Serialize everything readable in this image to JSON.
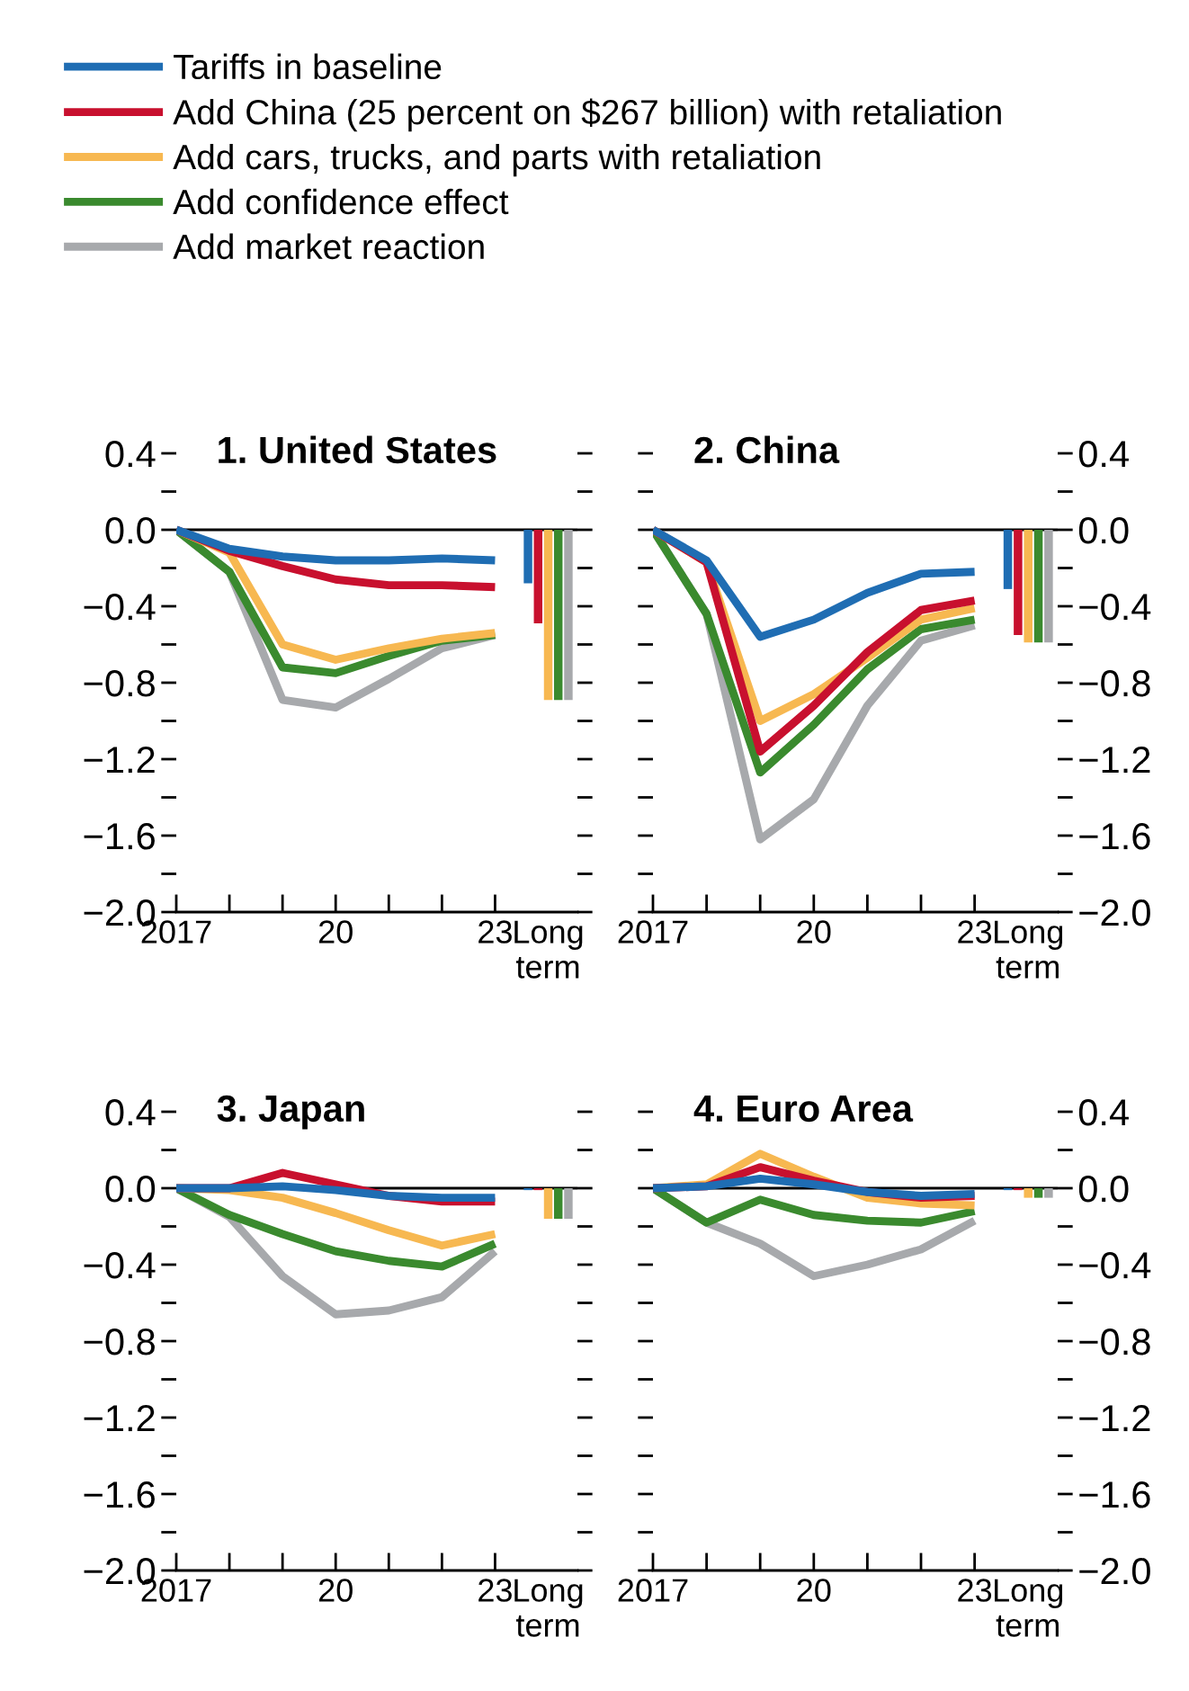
{
  "chart_data": [
    {
      "type": "line",
      "title": "1. United States",
      "legend": "top",
      "categories": [
        "2017",
        null,
        null,
        "20",
        null,
        null,
        "23",
        "Long term"
      ],
      "ylim": [
        -2.0,
        0.4
      ],
      "yticks": [
        {
          "value": 0.4,
          "label": "0.4"
        },
        {
          "value": 0.2,
          "label": null
        },
        {
          "value": 0.0,
          "label": "0.0"
        },
        {
          "value": -0.2,
          "label": null
        },
        {
          "value": -0.4,
          "label": "−0.4"
        },
        {
          "value": -0.6,
          "label": null
        },
        {
          "value": -0.8,
          "label": "−0.8"
        },
        {
          "value": -1.0,
          "label": null
        },
        {
          "value": -1.2,
          "label": "−1.2"
        },
        {
          "value": -1.4,
          "label": null
        },
        {
          "value": -1.6,
          "label": "−1.6"
        },
        {
          "value": -1.8,
          "label": null
        },
        {
          "value": -2.0,
          "label": "−2.0"
        }
      ],
      "ref_lines": [
        {
          "axis": "y",
          "value": 0,
          "color": "#000000"
        }
      ],
      "series": [
        {
          "name": "Tariffs in baseline",
          "color": "#1f6db3",
          "values": [
            0,
            -0.1,
            -0.14,
            -0.16,
            -0.16,
            -0.15,
            -0.16,
            null
          ]
        },
        {
          "name": "Add China (25 percent on $267 billion) with retaliation",
          "color": "#c8102e",
          "values": [
            0,
            -0.11,
            -0.19,
            -0.26,
            -0.29,
            -0.29,
            -0.3,
            null
          ]
        },
        {
          "name": "Add cars, trucks, and parts with retaliation",
          "color": "#f7b851",
          "values": [
            0,
            -0.12,
            -0.6,
            -0.68,
            -0.62,
            -0.57,
            -0.54,
            null
          ]
        },
        {
          "name": "Add confidence effect",
          "color": "#3a8a2e",
          "values": [
            0,
            -0.22,
            -0.72,
            -0.75,
            -0.66,
            -0.58,
            -0.55,
            null
          ]
        },
        {
          "name": "Add market reaction",
          "color": "#a7a9ac",
          "values": [
            0,
            -0.22,
            -0.89,
            -0.93,
            -0.78,
            -0.62,
            -0.55,
            null
          ]
        },
        {
          "type": "bar",
          "color": "#1f6db3",
          "values": [
            null,
            null,
            null,
            null,
            null,
            null,
            null,
            -0.28
          ]
        },
        {
          "type": "bar",
          "color": "#c8102e",
          "values": [
            null,
            null,
            null,
            null,
            null,
            null,
            null,
            -0.49
          ]
        },
        {
          "type": "bar",
          "color": "#f7b851",
          "values": [
            null,
            null,
            null,
            null,
            null,
            null,
            null,
            -0.89
          ]
        },
        {
          "type": "bar",
          "color": "#3a8a2e",
          "values": [
            null,
            null,
            null,
            null,
            null,
            null,
            null,
            -0.89
          ]
        },
        {
          "type": "bar",
          "color": "#a7a9ac",
          "values": [
            null,
            null,
            null,
            null,
            null,
            null,
            null,
            -0.89
          ]
        }
      ]
    },
    {
      "type": "line",
      "title": "2. China",
      "categories": [
        "2017",
        null,
        null,
        "20",
        null,
        null,
        "23",
        "Long term"
      ],
      "y2lim": [
        -2.0,
        0.4
      ],
      "y2ticks": [
        {
          "value": 0.4,
          "label": "0.4"
        },
        {
          "value": 0.2,
          "label": null
        },
        {
          "value": 0.0,
          "label": "0.0"
        },
        {
          "value": -0.2,
          "label": null
        },
        {
          "value": -0.4,
          "label": "−0.4"
        },
        {
          "value": -0.6,
          "label": null
        },
        {
          "value": -0.8,
          "label": "−0.8"
        },
        {
          "value": -1.0,
          "label": null
        },
        {
          "value": -1.2,
          "label": "−1.2"
        },
        {
          "value": -1.4,
          "label": null
        },
        {
          "value": -1.6,
          "label": "−1.6"
        },
        {
          "value": -1.8,
          "label": null
        },
        {
          "value": -2.0,
          "label": "−2.0"
        }
      ],
      "ref_lines": [
        {
          "axis": "y2",
          "value": 0,
          "color": "#000000"
        }
      ],
      "series": [
        {
          "axis": "y2",
          "color": "#1f6db3",
          "values": [
            0,
            -0.16,
            -0.56,
            -0.47,
            -0.33,
            -0.23,
            -0.22,
            null
          ]
        },
        {
          "axis": "y2",
          "color": "#c8102e",
          "values": [
            0,
            -0.17,
            -1.16,
            -0.92,
            -0.64,
            -0.42,
            -0.37,
            null
          ]
        },
        {
          "axis": "y2",
          "color": "#f7b851",
          "values": [
            0,
            -0.17,
            -1.0,
            -0.86,
            -0.67,
            -0.47,
            -0.41,
            null
          ]
        },
        {
          "axis": "y2",
          "color": "#3a8a2e",
          "values": [
            0,
            -0.44,
            -1.27,
            -1.02,
            -0.73,
            -0.52,
            -0.47,
            null
          ]
        },
        {
          "axis": "y2",
          "color": "#a7a9ac",
          "values": [
            0,
            -0.44,
            -1.62,
            -1.41,
            -0.92,
            -0.58,
            -0.5,
            null
          ]
        },
        {
          "axis": "y2",
          "type": "bar",
          "color": "#1f6db3",
          "values": [
            null,
            null,
            null,
            null,
            null,
            null,
            null,
            -0.31
          ]
        },
        {
          "axis": "y2",
          "type": "bar",
          "color": "#c8102e",
          "values": [
            null,
            null,
            null,
            null,
            null,
            null,
            null,
            -0.55
          ]
        },
        {
          "axis": "y2",
          "type": "bar",
          "color": "#f7b851",
          "values": [
            null,
            null,
            null,
            null,
            null,
            null,
            null,
            -0.59
          ]
        },
        {
          "axis": "y2",
          "type": "bar",
          "color": "#3a8a2e",
          "values": [
            null,
            null,
            null,
            null,
            null,
            null,
            null,
            -0.59
          ]
        },
        {
          "axis": "y2",
          "type": "bar",
          "color": "#a7a9ac",
          "values": [
            null,
            null,
            null,
            null,
            null,
            null,
            null,
            -0.59
          ]
        }
      ]
    },
    {
      "type": "line",
      "title": "3. Japan",
      "categories": [
        "2017",
        null,
        null,
        "20",
        null,
        null,
        "23",
        "Long term"
      ],
      "ylim": [
        -2.0,
        0.4
      ],
      "yticks": [
        {
          "value": 0.4,
          "label": "0.4"
        },
        {
          "value": 0.2,
          "label": null
        },
        {
          "value": 0.0,
          "label": "0.0"
        },
        {
          "value": -0.2,
          "label": null
        },
        {
          "value": -0.4,
          "label": "−0.4"
        },
        {
          "value": -0.6,
          "label": null
        },
        {
          "value": -0.8,
          "label": "−0.8"
        },
        {
          "value": -1.0,
          "label": null
        },
        {
          "value": -1.2,
          "label": "−1.2"
        },
        {
          "value": -1.4,
          "label": null
        },
        {
          "value": -1.6,
          "label": "−1.6"
        },
        {
          "value": -1.8,
          "label": null
        },
        {
          "value": -2.0,
          "label": "−2.0"
        }
      ],
      "ref_lines": [
        {
          "axis": "y",
          "value": 0,
          "color": "#000000"
        }
      ],
      "series": [
        {
          "color": "#1f6db3",
          "values": [
            0,
            0.0,
            0.01,
            -0.01,
            -0.04,
            -0.05,
            -0.05,
            null
          ]
        },
        {
          "color": "#c8102e",
          "values": [
            0,
            0.0,
            0.08,
            0.02,
            -0.04,
            -0.07,
            -0.07,
            null
          ]
        },
        {
          "color": "#f7b851",
          "values": [
            0,
            -0.01,
            -0.05,
            -0.13,
            -0.22,
            -0.3,
            -0.24,
            null
          ]
        },
        {
          "color": "#3a8a2e",
          "values": [
            0,
            -0.14,
            -0.24,
            -0.33,
            -0.38,
            -0.41,
            -0.29,
            null
          ]
        },
        {
          "color": "#a7a9ac",
          "values": [
            0,
            -0.15,
            -0.46,
            -0.66,
            -0.64,
            -0.57,
            -0.33,
            null
          ]
        },
        {
          "type": "bar",
          "color": "#1f6db3",
          "values": [
            null,
            null,
            null,
            null,
            null,
            null,
            null,
            -0.01
          ]
        },
        {
          "type": "bar",
          "color": "#c8102e",
          "values": [
            null,
            null,
            null,
            null,
            null,
            null,
            null,
            -0.01
          ]
        },
        {
          "type": "bar",
          "color": "#f7b851",
          "values": [
            null,
            null,
            null,
            null,
            null,
            null,
            null,
            -0.16
          ]
        },
        {
          "type": "bar",
          "color": "#3a8a2e",
          "values": [
            null,
            null,
            null,
            null,
            null,
            null,
            null,
            -0.16
          ]
        },
        {
          "type": "bar",
          "color": "#a7a9ac",
          "values": [
            null,
            null,
            null,
            null,
            null,
            null,
            null,
            -0.16
          ]
        }
      ]
    },
    {
      "type": "line",
      "title": "4. Euro Area",
      "categories": [
        "2017",
        null,
        null,
        "20",
        null,
        null,
        "23",
        "Long term"
      ],
      "y2lim": [
        -2.0,
        0.4
      ],
      "y2ticks": [
        {
          "value": 0.4,
          "label": "0.4"
        },
        {
          "value": 0.2,
          "label": null
        },
        {
          "value": 0.0,
          "label": "0.0"
        },
        {
          "value": -0.2,
          "label": null
        },
        {
          "value": -0.4,
          "label": "−0.4"
        },
        {
          "value": -0.6,
          "label": null
        },
        {
          "value": -0.8,
          "label": "−0.8"
        },
        {
          "value": -1.0,
          "label": null
        },
        {
          "value": -1.2,
          "label": "−1.2"
        },
        {
          "value": -1.4,
          "label": null
        },
        {
          "value": -1.6,
          "label": "−1.6"
        },
        {
          "value": -1.8,
          "label": null
        },
        {
          "value": -2.0,
          "label": "−2.0"
        }
      ],
      "ref_lines": [
        {
          "axis": "y2",
          "value": 0,
          "color": "#000000"
        }
      ],
      "series": [
        {
          "axis": "y2",
          "color": "#1f6db3",
          "values": [
            0,
            0.01,
            0.05,
            0.02,
            -0.02,
            -0.04,
            -0.03,
            null
          ]
        },
        {
          "axis": "y2",
          "color": "#c8102e",
          "values": [
            0,
            0.01,
            0.11,
            0.04,
            -0.02,
            -0.05,
            -0.04,
            null
          ]
        },
        {
          "axis": "y2",
          "color": "#f7b851",
          "values": [
            0,
            0.02,
            0.18,
            0.06,
            -0.05,
            -0.08,
            -0.09,
            null
          ]
        },
        {
          "axis": "y2",
          "color": "#3a8a2e",
          "values": [
            0,
            -0.18,
            -0.06,
            -0.14,
            -0.17,
            -0.18,
            -0.12,
            null
          ]
        },
        {
          "axis": "y2",
          "color": "#a7a9ac",
          "values": [
            0,
            -0.18,
            -0.29,
            -0.46,
            -0.4,
            -0.32,
            -0.17,
            null
          ]
        },
        {
          "axis": "y2",
          "type": "bar",
          "color": "#1f6db3",
          "values": [
            null,
            null,
            null,
            null,
            null,
            null,
            null,
            -0.01
          ]
        },
        {
          "axis": "y2",
          "type": "bar",
          "color": "#c8102e",
          "values": [
            null,
            null,
            null,
            null,
            null,
            null,
            null,
            -0.01
          ]
        },
        {
          "axis": "y2",
          "type": "bar",
          "color": "#f7b851",
          "values": [
            null,
            null,
            null,
            null,
            null,
            null,
            null,
            -0.05
          ]
        },
        {
          "axis": "y2",
          "type": "bar",
          "color": "#3a8a2e",
          "values": [
            null,
            null,
            null,
            null,
            null,
            null,
            null,
            -0.05
          ]
        },
        {
          "axis": "y2",
          "type": "bar",
          "color": "#a7a9ac",
          "values": [
            null,
            null,
            null,
            null,
            null,
            null,
            null,
            -0.05
          ]
        }
      ]
    }
  ]
}
